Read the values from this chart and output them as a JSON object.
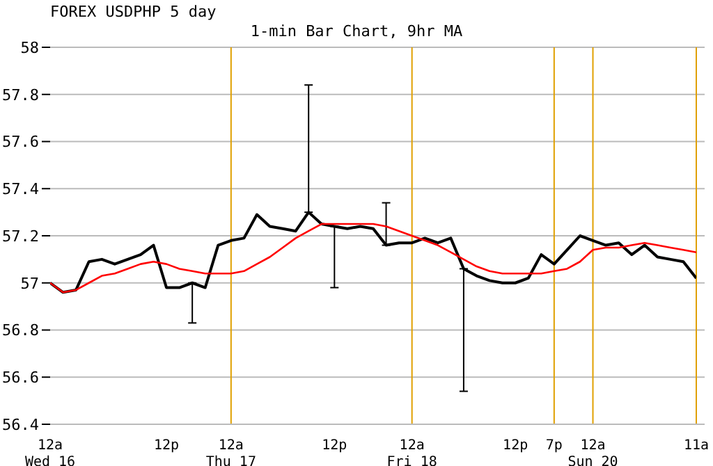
{
  "chart_data": {
    "type": "line",
    "title": "FOREX USDPHP 5 day",
    "subtitle": "1-min Bar Chart, 9hr MA",
    "categories": [
      "12a\nWed 16",
      null,
      null,
      null,
      null,
      null,
      null,
      null,
      null,
      "12p",
      null,
      null,
      null,
      null,
      "12a\nThu 17",
      null,
      null,
      null,
      null,
      null,
      null,
      null,
      "12p",
      null,
      null,
      null,
      null,
      null,
      "12a\nFri 18",
      null,
      null,
      null,
      null,
      null,
      null,
      null,
      "12p",
      null,
      null,
      "7p",
      null,
      null,
      "12a\nSun 20",
      null,
      null,
      null,
      null,
      null,
      null,
      null,
      "11a"
    ],
    "ylim": [
      56.4,
      58
    ],
    "yticks": [
      56.4,
      56.6,
      56.8,
      57,
      57.2,
      57.4,
      57.6,
      57.8,
      58
    ],
    "grid": "y",
    "legend": false,
    "marker": "none",
    "line_style": "solid",
    "ref_lines": [
      {
        "axis": "x",
        "value": "12a\nThu 17",
        "color": "#e0a000"
      },
      {
        "axis": "x",
        "value": "12a\nFri 18",
        "color": "#e0a000"
      },
      {
        "axis": "x",
        "value": "7p",
        "color": "#e0a000"
      },
      {
        "axis": "x",
        "value": "12a\nSun 20",
        "color": "#e0a000"
      },
      {
        "axis": "x",
        "value": "11a",
        "color": "#e0a000"
      }
    ],
    "series": [
      {
        "color": "#000000",
        "values": [
          57.0,
          56.96,
          56.97,
          57.09,
          57.1,
          57.08,
          57.1,
          57.12,
          57.16,
          56.98,
          56.98,
          57.0,
          56.98,
          57.16,
          57.18,
          57.19,
          57.29,
          57.24,
          57.23,
          57.22,
          57.3,
          57.25,
          57.24,
          57.23,
          57.24,
          57.23,
          57.16,
          57.17,
          57.17,
          57.19,
          57.17,
          57.19,
          57.06,
          57.03,
          57.01,
          57.0,
          57.0,
          57.02,
          57.12,
          57.08,
          57.14,
          57.2,
          57.18,
          57.16,
          57.17,
          57.12,
          57.16,
          57.11,
          57.1,
          57.09,
          57.02
        ],
        "errors": [
          null,
          null,
          null,
          null,
          null,
          null,
          null,
          null,
          null,
          null,
          null,
          [
            56.83,
            57.0
          ],
          null,
          null,
          null,
          null,
          null,
          null,
          null,
          null,
          [
            57.3,
            57.84
          ],
          null,
          [
            56.98,
            57.24
          ],
          null,
          null,
          null,
          [
            57.16,
            57.34
          ],
          null,
          null,
          null,
          null,
          null,
          [
            56.54,
            57.06
          ],
          null,
          null,
          null,
          null,
          null,
          null,
          null,
          null,
          null,
          null,
          null,
          null,
          null,
          null,
          null,
          null,
          null,
          null
        ]
      },
      {
        "color": "#ff0000",
        "values": [
          57.0,
          56.96,
          56.97,
          57.0,
          57.03,
          57.04,
          57.06,
          57.08,
          57.09,
          57.08,
          57.06,
          57.05,
          57.04,
          57.04,
          57.04,
          57.05,
          57.08,
          57.11,
          57.15,
          57.19,
          57.22,
          57.25,
          57.25,
          57.25,
          57.25,
          57.25,
          57.24,
          57.22,
          57.2,
          57.18,
          57.16,
          57.13,
          57.1,
          57.07,
          57.05,
          57.04,
          57.04,
          57.04,
          57.04,
          57.05,
          57.06,
          57.09,
          57.14,
          57.15,
          57.15,
          57.16,
          57.17,
          57.16,
          57.15,
          57.14,
          57.13
        ]
      }
    ]
  }
}
